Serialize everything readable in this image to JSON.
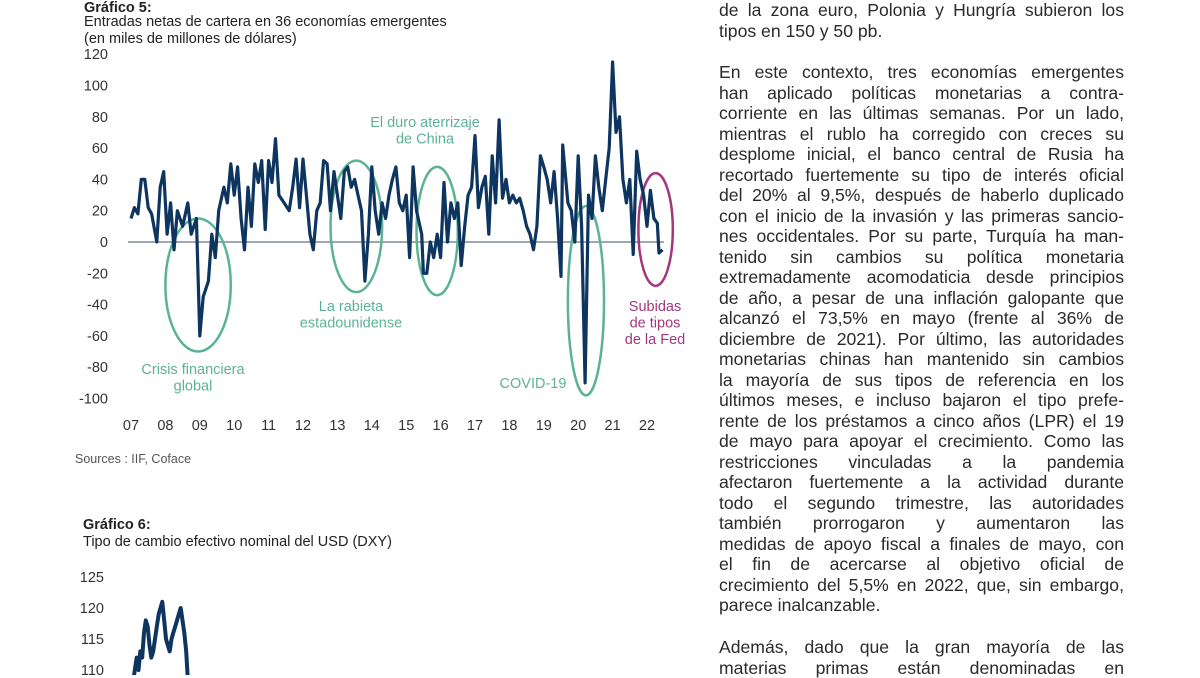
{
  "chart5": {
    "label": "Gráfico 5:",
    "title": "Entradas netas de cartera en 36 economías emergentes",
    "subtitle": "(en miles de millones de dólares)",
    "source": "Sources : IIF, Coface"
  },
  "chart6": {
    "label": "Gráfico 6:",
    "title": "Tipo de cambio efectivo nominal del USD (DXY)"
  },
  "chart_data": [
    {
      "type": "line",
      "title": "Entradas netas de cartera en 36 economías emergentes",
      "ylabel": "(en miles de millones de dólares)",
      "ylim": [
        -100,
        120
      ],
      "yticks": [
        "120",
        "100",
        "80",
        "60",
        "40",
        "20",
        "0",
        "-20",
        "-40",
        "-60",
        "-80",
        "-100"
      ],
      "xticks": [
        "07",
        "08",
        "09",
        "10",
        "11",
        "12",
        "13",
        "14",
        "15",
        "16",
        "17",
        "18",
        "19",
        "20",
        "21",
        "22"
      ],
      "xlim": [
        2007,
        2022.6
      ],
      "grid": false,
      "colors": {
        "series": "#0d3560",
        "zero_line": "#7f8a99",
        "annotation": "#5bb394",
        "fed": "#a3367f"
      },
      "series": [
        {
          "x": [
            2007.0,
            2007.1,
            2007.2,
            2007.3,
            2007.4,
            2007.5,
            2007.6,
            2007.75,
            2007.85,
            2007.95,
            2008.05,
            2008.15,
            2008.25,
            2008.35,
            2008.5,
            2008.65,
            2008.75,
            2008.9,
            2009.0,
            2009.1,
            2009.25,
            2009.35,
            2009.45,
            2009.55,
            2009.7,
            2009.8,
            2009.9,
            2010.0,
            2010.1,
            2010.2,
            2010.3,
            2010.4,
            2010.5,
            2010.6,
            2010.7,
            2010.8,
            2010.9,
            2011.0,
            2011.1,
            2011.2,
            2011.3,
            2011.45,
            2011.6,
            2011.7,
            2011.8,
            2011.9,
            2012.0,
            2012.1,
            2012.2,
            2012.3,
            2012.4,
            2012.5,
            2012.6,
            2012.7,
            2012.8,
            2012.9,
            2013.0,
            2013.1,
            2013.2,
            2013.3,
            2013.4,
            2013.5,
            2013.6,
            2013.7,
            2013.8,
            2013.9,
            2014.0,
            2014.1,
            2014.2,
            2014.3,
            2014.4,
            2014.5,
            2014.6,
            2014.7,
            2014.8,
            2014.9,
            2015.0,
            2015.1,
            2015.2,
            2015.3,
            2015.45,
            2015.5,
            2015.6,
            2015.7,
            2015.8,
            2015.9,
            2016.0,
            2016.1,
            2016.2,
            2016.3,
            2016.4,
            2016.5,
            2016.6,
            2016.7,
            2016.8,
            2016.9,
            2017.0,
            2017.1,
            2017.2,
            2017.3,
            2017.4,
            2017.5,
            2017.6,
            2017.7,
            2017.8,
            2017.9,
            2018.0,
            2018.1,
            2018.2,
            2018.3,
            2018.4,
            2018.5,
            2018.6,
            2018.7,
            2018.8,
            2018.9,
            2019.0,
            2019.1,
            2019.2,
            2019.3,
            2019.4,
            2019.5,
            2019.55,
            2019.7,
            2019.8,
            2019.9,
            2020.0,
            2020.1,
            2020.2,
            2020.3,
            2020.4,
            2020.5,
            2020.6,
            2020.7,
            2020.8,
            2020.9,
            2021.0,
            2021.1,
            2021.2,
            2021.3,
            2021.4,
            2021.5,
            2021.6,
            2021.7,
            2021.8,
            2021.9,
            2022.0,
            2022.1,
            2022.2,
            2022.3,
            2022.35,
            2022.45
          ],
          "y": [
            15,
            22,
            18,
            40,
            40,
            22,
            18,
            0,
            35,
            45,
            5,
            25,
            -5,
            20,
            10,
            25,
            5,
            15,
            -60,
            -35,
            -25,
            5,
            -10,
            20,
            35,
            25,
            50,
            30,
            48,
            15,
            -5,
            35,
            10,
            50,
            38,
            52,
            8,
            52,
            38,
            66,
            30,
            25,
            20,
            35,
            53,
            22,
            53,
            30,
            5,
            -5,
            20,
            25,
            52,
            50,
            20,
            45,
            30,
            15,
            45,
            48,
            35,
            40,
            30,
            20,
            -25,
            5,
            48,
            20,
            5,
            25,
            15,
            30,
            40,
            48,
            25,
            20,
            30,
            -10,
            48,
            20,
            5,
            -20,
            -20,
            0,
            -10,
            5,
            -10,
            38,
            0,
            25,
            15,
            25,
            -15,
            10,
            30,
            35,
            68,
            22,
            35,
            42,
            5,
            55,
            25,
            78,
            28,
            40,
            25,
            30,
            25,
            28,
            20,
            10,
            5,
            -5,
            10,
            55,
            48,
            40,
            25,
            45,
            15,
            -22,
            62,
            25,
            20,
            0,
            55,
            10,
            -90,
            30,
            15,
            55,
            35,
            20,
            40,
            60,
            115,
            70,
            80,
            40,
            25,
            40,
            -8,
            58,
            40,
            30,
            10,
            33,
            15,
            12,
            -7,
            -5
          ]
        }
      ],
      "annotations": [
        {
          "text": [
            "Crisis financiera",
            "global"
          ],
          "x_range": [
            2008.0,
            2009.9
          ],
          "y_range": [
            -70,
            15
          ],
          "color": "#5bb394"
        },
        {
          "text": [
            "La rabieta",
            "estadounidense"
          ],
          "x_range": [
            2012.8,
            2014.3
          ],
          "y_range": [
            -32,
            52
          ],
          "color": "#5bb394"
        },
        {
          "text": [
            "El duro aterrizaje",
            "de China"
          ],
          "x_range": [
            2015.3,
            2016.5
          ],
          "y_range": [
            -34,
            48
          ],
          "color": "#5bb394"
        },
        {
          "text": [
            "COVID-19"
          ],
          "x_range": [
            2019.7,
            2020.75
          ],
          "y_range": [
            -98,
            23
          ],
          "color": "#5bb394"
        },
        {
          "text": [
            "Subidas",
            "de tipos",
            "de la Fed"
          ],
          "x_range": [
            2021.75,
            2022.75
          ],
          "y_range": [
            -28,
            44
          ],
          "color": "#a3367f"
        }
      ]
    },
    {
      "type": "line",
      "title": "Tipo de cambio efectivo nominal del USD (DXY)",
      "yticks": [
        "125",
        "120",
        "115",
        "110"
      ],
      "ylim_visible": [
        108,
        127
      ],
      "grid": false,
      "colors": {
        "series": "#0d3560"
      },
      "series": [
        {
          "values": [
            108,
            110,
            112,
            110,
            113,
            112,
            116,
            118,
            117,
            114,
            112,
            113,
            115,
            117,
            119,
            120,
            121,
            118,
            115,
            114,
            113,
            115,
            116,
            117,
            118,
            119,
            120,
            118,
            116,
            113,
            108
          ]
        }
      ]
    }
  ],
  "article": {
    "paragraphs": [
      [
        "de la zona euro, Polonia y Hungría subieron los",
        "tipos en 150 y 50 pb."
      ],
      [
        "En este contexto, tres economías emergentes",
        "han aplicado políticas monetarias a contra-",
        "corriente en las últimas semanas. Por un lado,",
        "mientras el rublo ha corregido con creces su",
        "desplome inicial, el banco central de Rusia ha",
        "recortado fuertemente su tipo de interés oficial",
        "del 20% al 9,5%, después de haberlo duplicado",
        "con el inicio de la invasión y las primeras sancio-",
        "nes occidentales. Por su parte, Turquía ha man-",
        "tenido sin cambios su política monetaria",
        "extremadamente acomodaticia desde principios",
        "de año, a pesar de una inflación galopante que",
        "alcanzó el 73,5% en mayo (frente al 36% de",
        "diciembre de 2021). Por último, las autoridades",
        "monetarias chinas han mantenido sin cambios",
        "la mayoría de sus tipos de referencia en los",
        "últimos meses, e incluso bajaron el tipo prefe-",
        "rente de los préstamos a cinco años (LPR) el 19",
        "de mayo para apoyar el crecimiento. Como las",
        "restricciones vinculadas a la pandemia",
        "afectaron fuertemente a la actividad durante",
        "todo el segundo trimestre, las autoridades",
        "también prorrogaron y aumentaron las",
        "medidas de apoyo fiscal a finales de mayo, con",
        "el fin de acercarse al objetivo oficial de",
        "crecimiento del 5,5% en 2022, que, sin embargo,",
        "parece inalcanzable."
      ],
      [
        "Además, dado que la gran mayoría de las",
        "materias primas están denominadas en"
      ]
    ]
  }
}
